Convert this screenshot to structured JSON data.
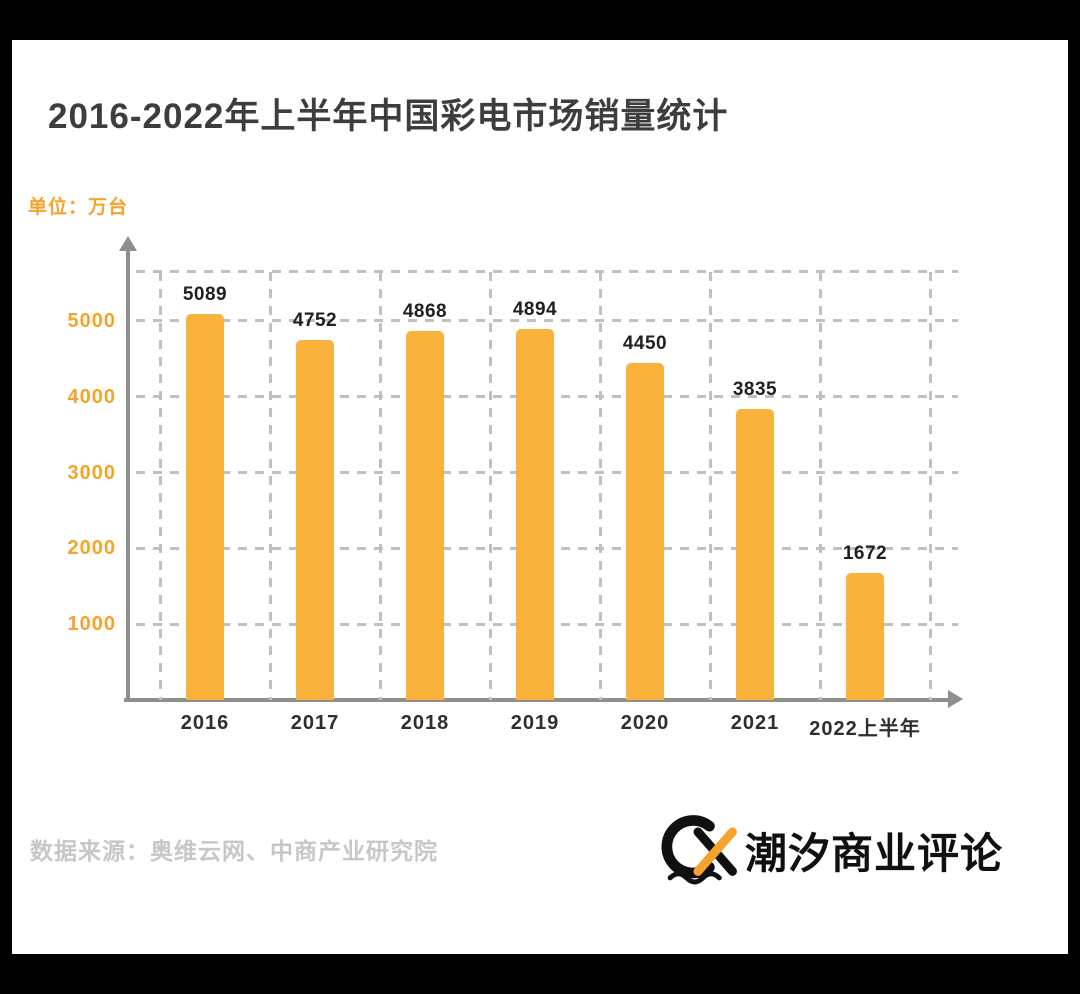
{
  "chart_data": {
    "type": "bar",
    "title": "2016-2022年上半年中国彩电市场销量统计",
    "ylabel": "单位：万台",
    "unit": "万台",
    "categories": [
      "2016",
      "2017",
      "2018",
      "2019",
      "2020",
      "2021",
      "2022上半年"
    ],
    "values": [
      5089,
      4752,
      4868,
      4894,
      4450,
      3835,
      1672
    ],
    "yticks": [
      1000,
      2000,
      3000,
      4000,
      5000
    ],
    "ylim": [
      0,
      6000
    ],
    "grid": "dashed horizontal and vertical",
    "legend": "none",
    "bar_color": "#f9b23c"
  },
  "footer": {
    "source": "数据来源：奥维云网、中商产业研究院",
    "brand": "潮汐商业评论"
  },
  "colors": {
    "bar": "#f9b23c",
    "axis": "#8f8f8f",
    "grid": "#c0c0c0",
    "ytick": "#f5a32a",
    "title": "#3d3d3d",
    "source": "#c7c7c7",
    "background": "#ffffff",
    "frame": "#000000"
  }
}
